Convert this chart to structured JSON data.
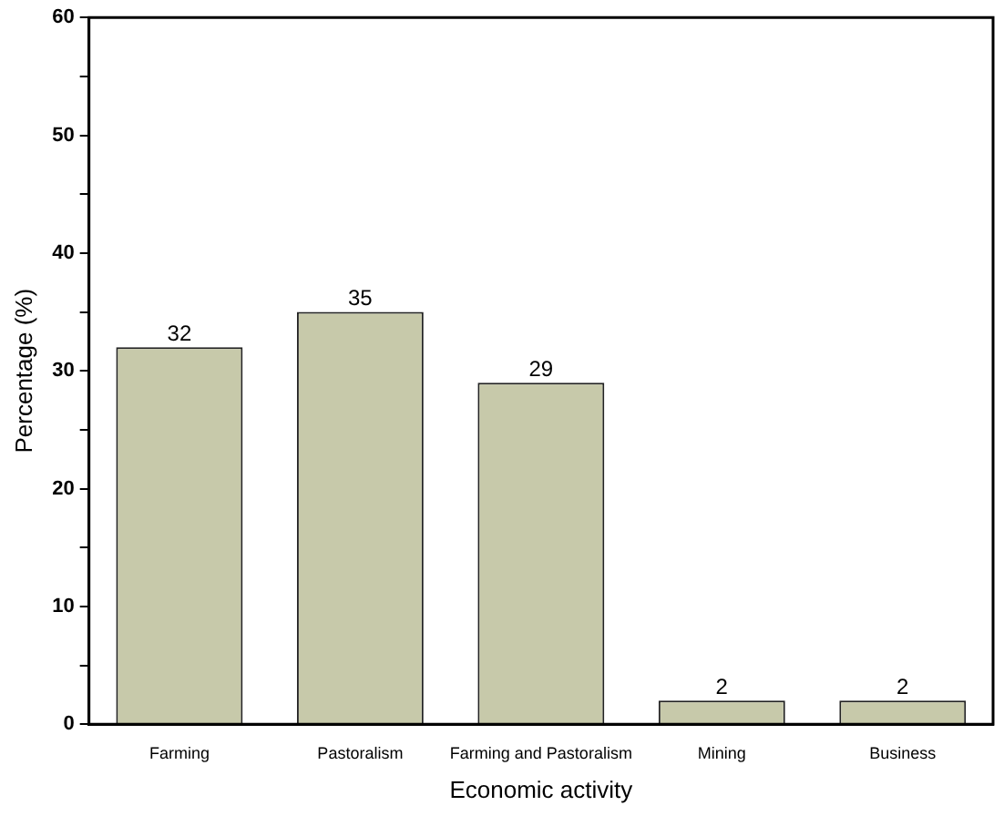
{
  "chart_data": {
    "type": "bar",
    "xlabel": "Economic activity",
    "ylabel": "Percentage (%)",
    "categories": [
      "Farming",
      "Pastoralism",
      "Farming and Pastoralism",
      "Mining",
      "Business"
    ],
    "values": [
      32,
      35,
      29,
      2,
      2
    ],
    "color": "#c7c9aa",
    "data_labels": true,
    "grid": false,
    "legend": false,
    "ylim": [
      0,
      60
    ],
    "yticks": [
      0,
      {
        "value": 5,
        "label": null
      },
      10,
      {
        "value": 15,
        "label": null
      },
      20,
      {
        "value": 25,
        "label": null
      },
      30,
      {
        "value": 35,
        "label": null
      },
      40,
      {
        "value": 45,
        "label": null
      },
      50,
      {
        "value": 55,
        "label": null
      },
      60
    ]
  }
}
